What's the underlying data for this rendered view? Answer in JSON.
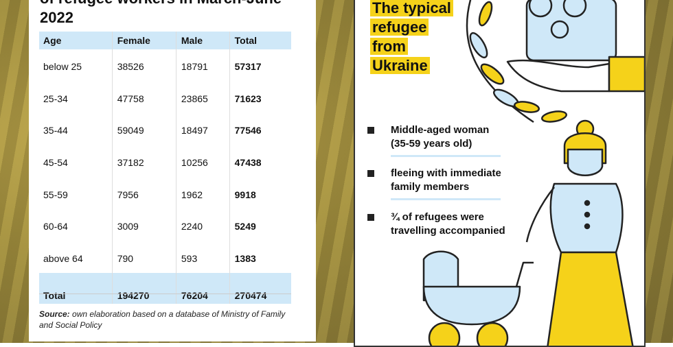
{
  "table": {
    "title_lines": [
      "of refugee workers in March-June",
      "2022"
    ],
    "columns": [
      "Age",
      "Female",
      "Male",
      "Total"
    ],
    "rows": [
      [
        "below 25",
        38526,
        18791,
        57317
      ],
      [
        "25-34",
        47758,
        23865,
        71623
      ],
      [
        "35-44",
        59049,
        18497,
        77546
      ],
      [
        "45-54",
        37182,
        10256,
        47438
      ],
      [
        "55-59",
        7956,
        1962,
        9918
      ],
      [
        "60-64",
        3009,
        2240,
        5249
      ],
      [
        "above 64",
        790,
        593,
        1383
      ]
    ],
    "total": [
      "Total",
      194270,
      76204,
      270474
    ]
  },
  "source": {
    "label": "Source:",
    "lines": [
      "own elaboration based on a database of Ministry of Family",
      "and Social Policy"
    ]
  },
  "infographic": {
    "title_lines": [
      "The typical",
      "refugee",
      "from",
      "Ukraine"
    ],
    "bullets": [
      [
        "Middle-aged woman",
        "(35-59 years old)"
      ],
      [
        "fleeing with immediate",
        "family members"
      ],
      [
        "¾ of refugees were",
        "travelling accompanied"
      ]
    ]
  }
}
